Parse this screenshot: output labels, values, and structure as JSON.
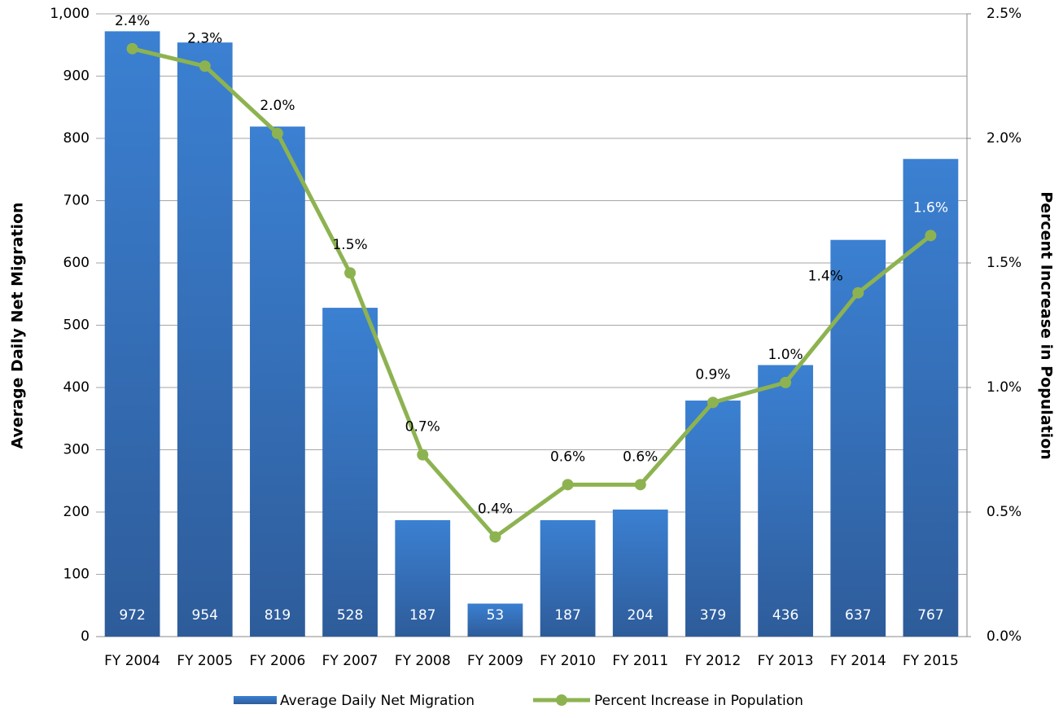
{
  "chart_data": {
    "type": "bar_line",
    "y_label": "Average Daily Net Migration",
    "y2_label": "Percent Increase in Population",
    "categories": [
      "FY 2004",
      "FY 2005",
      "FY 2006",
      "FY 2007",
      "FY 2008",
      "FY 2009",
      "FY 2010",
      "FY 2011",
      "FY 2012",
      "FY 2013",
      "FY 2014",
      "FY 2015"
    ],
    "series": [
      {
        "name": "Average Daily Net Migration",
        "type": "bar",
        "color": "#3a7dcc",
        "values": [
          972,
          954,
          819,
          528,
          187,
          53,
          187,
          204,
          379,
          436,
          637,
          767
        ]
      },
      {
        "name": "Percent Increase in Population",
        "type": "line",
        "axis": "y2",
        "color": "#8db351",
        "values": [
          2.36,
          2.29,
          2.02,
          1.46,
          0.73,
          0.4,
          0.61,
          0.61,
          0.94,
          1.02,
          1.38,
          1.61
        ],
        "value_labels": [
          "2.4%",
          "2.3%",
          "2.0%",
          "1.5%",
          "0.7%",
          "0.4%",
          "0.6%",
          "0.6%",
          "0.9%",
          "1.0%",
          "1.4%",
          "1.6%"
        ]
      }
    ],
    "ylim": [
      0,
      1000
    ],
    "yticks": [
      0,
      100,
      200,
      300,
      400,
      500,
      600,
      700,
      800,
      900,
      {
        "value": 1000,
        "label": "1,000"
      }
    ],
    "y2lim": [
      0,
      2.5
    ],
    "y2ticks": [
      {
        "value": 0,
        "label": "0.0%"
      },
      {
        "value": 0.5,
        "label": "0.5%"
      },
      {
        "value": 1,
        "label": "1.0%"
      },
      {
        "value": 1.5,
        "label": "1.5%"
      },
      {
        "value": 2,
        "label": "2.0%"
      },
      {
        "value": 2.5,
        "label": "2.5%"
      }
    ],
    "grid": true,
    "legend": "bottom"
  }
}
